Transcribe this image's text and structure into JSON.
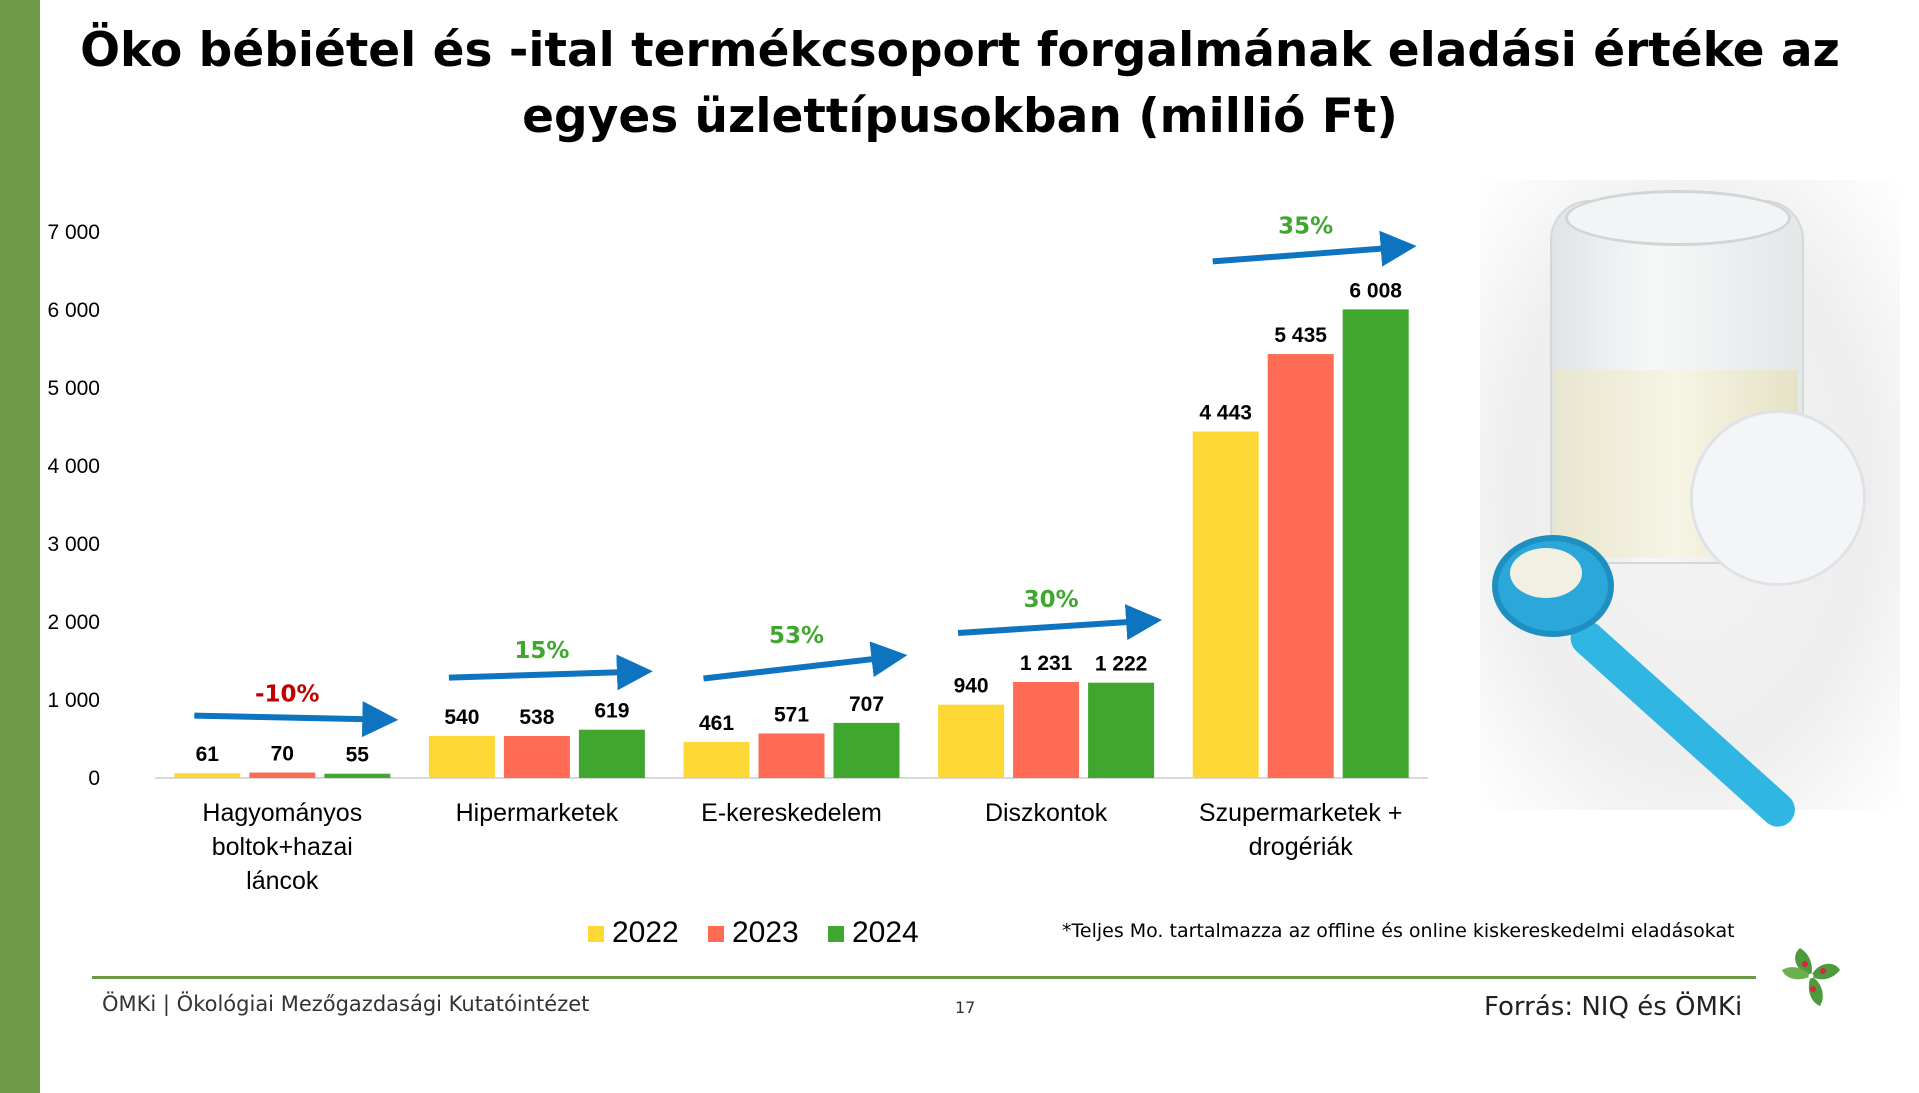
{
  "title": "Öko bébiétel és -ital termékcsoport forgalmának eladási értéke az egyes üzlettípusokban (millió Ft)",
  "footnote": "*Teljes Mo. tartalmazza az offline és online kiskereskedelmi eladásokat",
  "footer": {
    "left": "ÖMKi | Ökológiai Mezőgazdasági Kutatóintézet",
    "page": "17",
    "source": "Forrás: NIQ és ÖMKi"
  },
  "chart_data": {
    "type": "bar",
    "categories": [
      [
        "Hagyományos",
        "boltok+hazai",
        "láncok"
      ],
      [
        "Hipermarketek"
      ],
      [
        "E-kereskedelem"
      ],
      [
        "Diszkontok"
      ],
      [
        "Szupermarketek +",
        "drogériák"
      ]
    ],
    "series": [
      {
        "name": "2022",
        "color": "#fdd835",
        "values": [
          61,
          540,
          461,
          940,
          4443
        ],
        "labels": [
          "61",
          "540",
          "461",
          "940",
          "4 443"
        ]
      },
      {
        "name": "2023",
        "color": "#ff6b54",
        "values": [
          70,
          538,
          571,
          1231,
          5435
        ],
        "labels": [
          "70",
          "538",
          "571",
          "1 231",
          "5 435"
        ]
      },
      {
        "name": "2024",
        "color": "#3fa72e",
        "values": [
          55,
          619,
          707,
          1222,
          6008
        ],
        "labels": [
          "55",
          "619",
          "707",
          "1 222",
          "6 008"
        ]
      }
    ],
    "ylim": [
      0,
      7000
    ],
    "yticks": [
      0,
      1000,
      2000,
      3000,
      4000,
      5000,
      6000,
      7000
    ],
    "ytick_labels": [
      "0",
      "1 000",
      "2 000",
      "3 000",
      "4 000",
      "5 000",
      "6 000",
      "7 000"
    ],
    "changes": [
      {
        "label": "-10%",
        "color": "#c00000"
      },
      {
        "label": "15%",
        "color": "#3fa72e"
      },
      {
        "label": "53%",
        "color": "#3fa72e"
      },
      {
        "label": "30%",
        "color": "#3fa72e"
      },
      {
        "label": "35%",
        "color": "#3fa72e"
      }
    ],
    "arrow_color": "#0f74c0",
    "grid": false,
    "legend": "bottom"
  }
}
